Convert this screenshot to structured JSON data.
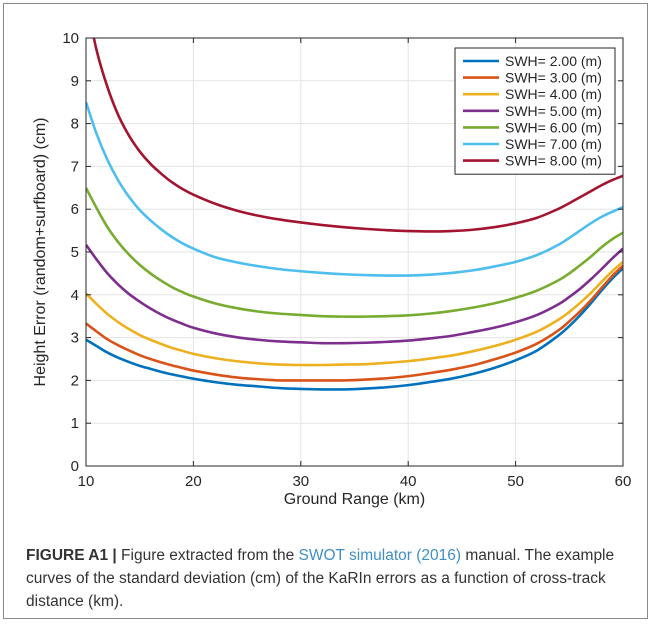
{
  "chart_data": {
    "type": "line",
    "xlabel": "Ground Range (km)",
    "ylabel": "Height Error (random+surfboard) (cm)",
    "xlim": [
      10,
      60
    ],
    "ylim": [
      0,
      10
    ],
    "xticks": [
      "10",
      "20",
      "30",
      "40",
      "50",
      "60"
    ],
    "yticks": [
      "0",
      "1",
      "2",
      "3",
      "4",
      "5",
      "6",
      "7",
      "8",
      "9",
      "10"
    ],
    "grid": true,
    "legend_position": "top-right",
    "x": [
      10,
      11,
      12,
      13,
      14,
      15,
      16,
      17,
      18,
      19,
      20,
      22,
      24,
      26,
      28,
      30,
      32,
      34,
      36,
      38,
      40,
      42,
      44,
      46,
      48,
      50,
      52,
      54,
      55,
      56,
      57,
      58,
      59,
      60
    ],
    "series": [
      {
        "name": "SWH= 2.00 (m)",
        "color": "#0072bd",
        "values": [
          2.95,
          2.8,
          2.65,
          2.53,
          2.43,
          2.34,
          2.27,
          2.2,
          2.14,
          2.09,
          2.04,
          1.96,
          1.9,
          1.86,
          1.82,
          1.8,
          1.79,
          1.79,
          1.81,
          1.84,
          1.89,
          1.96,
          2.04,
          2.15,
          2.29,
          2.47,
          2.7,
          3.05,
          3.27,
          3.52,
          3.8,
          4.1,
          4.38,
          4.62
        ]
      },
      {
        "name": "SWH= 3.00 (m)",
        "color": "#d95319",
        "values": [
          3.33,
          3.14,
          2.96,
          2.82,
          2.7,
          2.59,
          2.5,
          2.42,
          2.35,
          2.29,
          2.23,
          2.14,
          2.07,
          2.03,
          2.0,
          2.0,
          2.0,
          2.0,
          2.02,
          2.05,
          2.1,
          2.17,
          2.25,
          2.35,
          2.49,
          2.65,
          2.86,
          3.17,
          3.38,
          3.61,
          3.87,
          4.16,
          4.44,
          4.68
        ]
      },
      {
        "name": "SWH= 4.00 (m)",
        "color": "#edb120",
        "values": [
          4.03,
          3.78,
          3.55,
          3.36,
          3.2,
          3.06,
          2.95,
          2.85,
          2.76,
          2.69,
          2.62,
          2.52,
          2.45,
          2.4,
          2.37,
          2.36,
          2.36,
          2.37,
          2.38,
          2.41,
          2.45,
          2.51,
          2.58,
          2.68,
          2.8,
          2.95,
          3.14,
          3.42,
          3.6,
          3.81,
          4.04,
          4.3,
          4.55,
          4.77
        ]
      },
      {
        "name": "SWH= 5.00 (m)",
        "color": "#7e2f8e",
        "values": [
          5.17,
          4.82,
          4.5,
          4.24,
          4.02,
          3.84,
          3.68,
          3.54,
          3.42,
          3.32,
          3.23,
          3.1,
          3.01,
          2.95,
          2.91,
          2.89,
          2.87,
          2.87,
          2.88,
          2.9,
          2.93,
          2.98,
          3.04,
          3.13,
          3.23,
          3.36,
          3.53,
          3.78,
          3.95,
          4.14,
          4.36,
          4.6,
          4.85,
          5.08
        ]
      },
      {
        "name": "SWH= 6.00 (m)",
        "color": "#77ac30",
        "values": [
          6.5,
          6.02,
          5.58,
          5.23,
          4.94,
          4.7,
          4.5,
          4.33,
          4.18,
          4.06,
          3.96,
          3.8,
          3.69,
          3.61,
          3.56,
          3.53,
          3.5,
          3.49,
          3.49,
          3.5,
          3.52,
          3.56,
          3.62,
          3.7,
          3.8,
          3.93,
          4.1,
          4.34,
          4.5,
          4.69,
          4.89,
          5.11,
          5.3,
          5.45
        ]
      },
      {
        "name": "SWH= 7.00 (m)",
        "color": "#4dbeee",
        "values": [
          8.5,
          7.75,
          7.15,
          6.67,
          6.29,
          5.98,
          5.74,
          5.53,
          5.35,
          5.2,
          5.08,
          4.88,
          4.76,
          4.67,
          4.6,
          4.55,
          4.51,
          4.48,
          4.46,
          4.45,
          4.45,
          4.47,
          4.51,
          4.57,
          4.66,
          4.77,
          4.93,
          5.17,
          5.33,
          5.5,
          5.67,
          5.82,
          5.94,
          6.05
        ]
      },
      {
        "name": "SWH= 8.00 (m)",
        "color": "#a2142f",
        "values": [
          10.9,
          9.7,
          8.85,
          8.2,
          7.72,
          7.35,
          7.06,
          6.83,
          6.63,
          6.47,
          6.34,
          6.13,
          5.97,
          5.85,
          5.76,
          5.69,
          5.63,
          5.58,
          5.54,
          5.51,
          5.49,
          5.48,
          5.49,
          5.52,
          5.58,
          5.67,
          5.8,
          6.01,
          6.14,
          6.28,
          6.42,
          6.56,
          6.68,
          6.78
        ]
      }
    ]
  },
  "caption": {
    "label": "FIGURE A1 |",
    "text_before": " Figure extracted from the ",
    "reference": "SWOT simulator (2016)",
    "text_after": " manual. The example curves of the standard deviation (cm) of the KaRIn errors as a function of cross-track distance (km)."
  }
}
